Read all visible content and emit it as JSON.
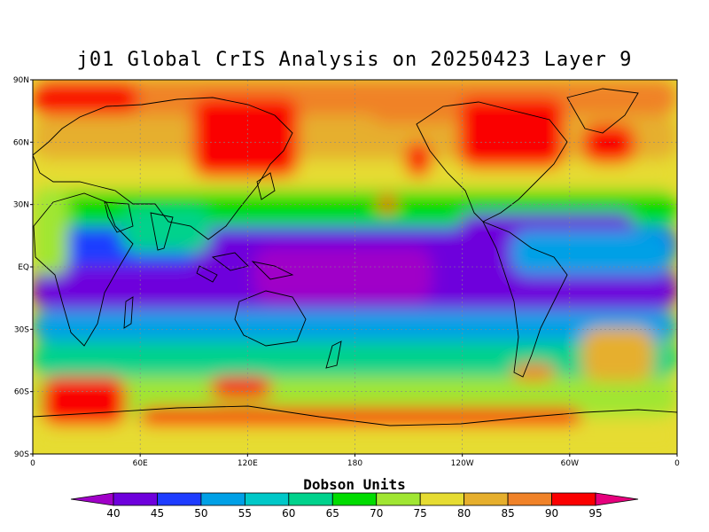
{
  "title": "j01 Global CrIS Analysis on 20250423 Layer 9",
  "colorbar": {
    "title": "Dobson Units",
    "tick_labels": [
      "40",
      "45",
      "50",
      "55",
      "60",
      "65",
      "70",
      "75",
      "80",
      "85",
      "90",
      "95"
    ],
    "colors": [
      "#a000c8",
      "#6e00dc",
      "#1e3cff",
      "#00a0e6",
      "#00c8c8",
      "#00d28c",
      "#00dc00",
      "#a0e632",
      "#e6dc32",
      "#e6af2d",
      "#f08228",
      "#fa0000",
      "#e6007d"
    ]
  },
  "map": {
    "lat_labels": [
      "90N",
      "60N",
      "30N",
      "EQ",
      "30S",
      "60S",
      "90S"
    ],
    "lon_labels": [
      "0",
      "60E",
      "120E",
      "180",
      "120W",
      "60W",
      "0"
    ]
  }
}
